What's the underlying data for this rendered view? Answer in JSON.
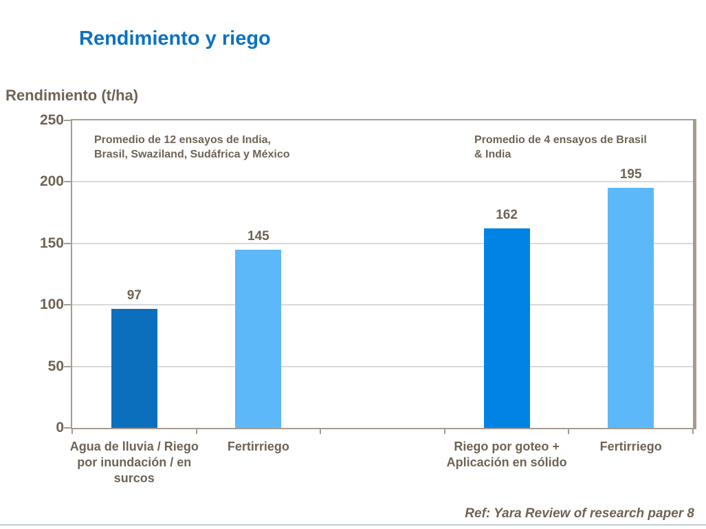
{
  "page": {
    "title": "Rendimiento y riego",
    "footer": "Ref: Yara Review of research paper 8"
  },
  "chart_data": {
    "type": "bar",
    "title": "Rendimiento y riego",
    "xlabel": "",
    "ylabel": "Rendimiento (t/ha)",
    "ylim": [
      0,
      250
    ],
    "y_ticks": [
      0,
      50,
      100,
      150,
      200,
      250
    ],
    "grid": true,
    "legend": "none",
    "categories": [
      "Agua de lluvia / Riego por inundación / en surcos",
      "Fertirriego",
      "",
      "Riego por goteo + Aplicación en sólido",
      "Fertirriego"
    ],
    "values": [
      97,
      145,
      null,
      162,
      195
    ],
    "bar_colors": [
      "#0b6fbd",
      "#5cb8f8",
      null,
      "#0083e4",
      "#5cb8f8"
    ],
    "annotations": [
      {
        "text": "Promedio de 12 ensayos de India, Brasil, Swaziland, Sudáfrica y México"
      },
      {
        "text": "Promedio de 4 ensayos de Brasil & India"
      }
    ]
  },
  "colors": {
    "title_blue": "#0a72c4",
    "text_brown": "#6e6355",
    "plot_border": "#a59c90",
    "gridline": "#d9d9d9",
    "bottom_divider": "#c3cdd6",
    "background": "#ffffff"
  }
}
